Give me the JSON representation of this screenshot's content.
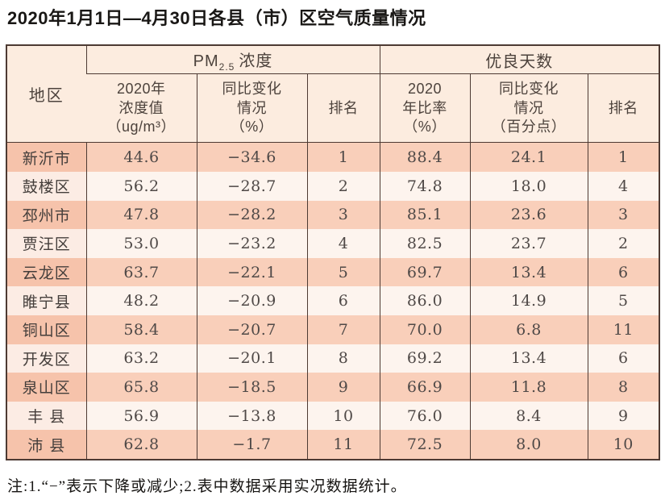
{
  "title": "2020年1月1日—4月30日各县（市）区空气质量情况",
  "note": "注:1.“−”表示下降或减少;2.表中数据采用实况数据统计。",
  "colors": {
    "border": "#4d3a33",
    "header_bg": "#fcecdf",
    "row_odd_bg": "#f9cfba",
    "row_odd_region_bg": "#f6c3ab",
    "row_even_bg": "#fdf4ee",
    "row_even_region_bg": "#fcece4"
  },
  "table": {
    "region_header": "地区",
    "pm_group": {
      "prefix": "PM",
      "subscript": "2.5",
      "suffix": "浓度"
    },
    "days_group": "优良天数",
    "sub_headers": [
      "2020年\n浓度值\n（ug/m³）",
      "同比变化\n情况\n（%）",
      "排名",
      "2020\n年比率\n（%）",
      "同比变化\n情况\n（百分点）",
      "排名"
    ],
    "rows": [
      {
        "region": "新沂市",
        "pm_value": "44.6",
        "pm_change": "−34.6",
        "pm_rank": "1",
        "days_rate": "88.4",
        "days_change": "24.1",
        "days_rank": "1"
      },
      {
        "region": "鼓楼区",
        "pm_value": "56.2",
        "pm_change": "−28.7",
        "pm_rank": "2",
        "days_rate": "74.8",
        "days_change": "18.0",
        "days_rank": "4"
      },
      {
        "region": "邳州市",
        "pm_value": "47.8",
        "pm_change": "−28.2",
        "pm_rank": "3",
        "days_rate": "85.1",
        "days_change": "23.6",
        "days_rank": "3"
      },
      {
        "region": "贾汪区",
        "pm_value": "53.0",
        "pm_change": "−23.2",
        "pm_rank": "4",
        "days_rate": "82.5",
        "days_change": "23.7",
        "days_rank": "2"
      },
      {
        "region": "云龙区",
        "pm_value": "63.7",
        "pm_change": "−22.1",
        "pm_rank": "5",
        "days_rate": "69.7",
        "days_change": "13.4",
        "days_rank": "6"
      },
      {
        "region": "睢宁县",
        "pm_value": "48.2",
        "pm_change": "−20.9",
        "pm_rank": "6",
        "days_rate": "86.0",
        "days_change": "14.9",
        "days_rank": "5"
      },
      {
        "region": "铜山区",
        "pm_value": "58.4",
        "pm_change": "−20.7",
        "pm_rank": "7",
        "days_rate": "70.0",
        "days_change": "6.8",
        "days_rank": "11"
      },
      {
        "region": "开发区",
        "pm_value": "63.2",
        "pm_change": "−20.1",
        "pm_rank": "8",
        "days_rate": "69.2",
        "days_change": "13.4",
        "days_rank": "6"
      },
      {
        "region": "泉山区",
        "pm_value": "65.8",
        "pm_change": "−18.5",
        "pm_rank": "9",
        "days_rate": "66.9",
        "days_change": "11.8",
        "days_rank": "8"
      },
      {
        "region": "丰 县",
        "pm_value": "56.9",
        "pm_change": "−13.8",
        "pm_rank": "10",
        "days_rate": "76.0",
        "days_change": "8.4",
        "days_rank": "9"
      },
      {
        "region": "沛 县",
        "pm_value": "62.8",
        "pm_change": "−1.7",
        "pm_rank": "11",
        "days_rate": "72.5",
        "days_change": "8.0",
        "days_rank": "10"
      }
    ]
  },
  "chart_data": {
    "type": "table",
    "title": "2020年1月1日—4月30日各县（市）区空气质量情况",
    "columns": [
      "地区",
      "PM2.5浓度 2020年浓度值（ug/m³）",
      "PM2.5浓度 同比变化情况（%）",
      "PM2.5浓度 排名",
      "优良天数 2020年比率（%）",
      "优良天数 同比变化情况（百分点）",
      "优良天数 排名"
    ],
    "rows": [
      [
        "新沂市",
        44.6,
        -34.6,
        1,
        88.4,
        24.1,
        1
      ],
      [
        "鼓楼区",
        56.2,
        -28.7,
        2,
        74.8,
        18.0,
        4
      ],
      [
        "邳州市",
        47.8,
        -28.2,
        3,
        85.1,
        23.6,
        3
      ],
      [
        "贾汪区",
        53.0,
        -23.2,
        4,
        82.5,
        23.7,
        2
      ],
      [
        "云龙区",
        63.7,
        -22.1,
        5,
        69.7,
        13.4,
        6
      ],
      [
        "睢宁县",
        48.2,
        -20.9,
        6,
        86.0,
        14.9,
        5
      ],
      [
        "铜山区",
        58.4,
        -20.7,
        7,
        70.0,
        6.8,
        11
      ],
      [
        "开发区",
        63.2,
        -20.1,
        8,
        69.2,
        13.4,
        6
      ],
      [
        "泉山区",
        65.8,
        -18.5,
        9,
        66.9,
        11.8,
        8
      ],
      [
        "丰县",
        56.9,
        -13.8,
        10,
        76.0,
        8.4,
        9
      ],
      [
        "沛县",
        62.8,
        -1.7,
        11,
        72.5,
        8.0,
        10
      ]
    ]
  }
}
